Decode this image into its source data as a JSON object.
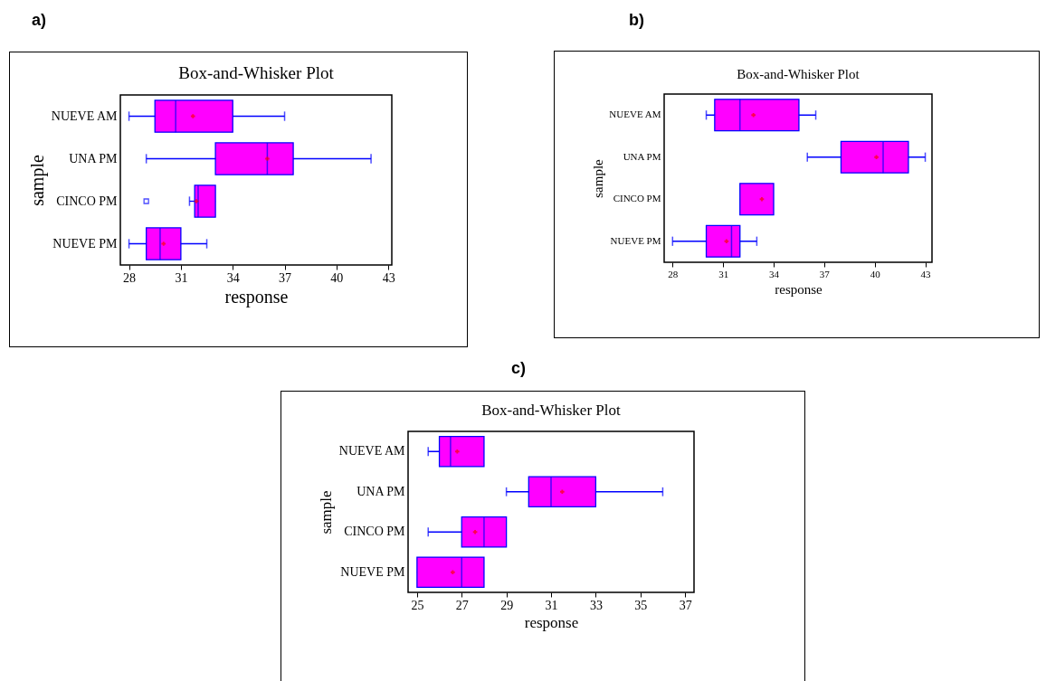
{
  "chart_data": [
    {
      "type": "box",
      "orientation": "horizontal",
      "title": "Box-and-Whisker Plot",
      "annotations": [
        "a)"
      ],
      "xlabel": "response",
      "ylabel": "sample",
      "categories": [
        "NUEVE AM",
        "UNA PM",
        "CINCO PM",
        "NUEVE PM"
      ],
      "color": "#ff00ff",
      "xlim": [
        27.5,
        43.2
      ],
      "xticks": [
        28,
        31,
        34,
        37,
        40,
        43
      ],
      "boxes": [
        {
          "low": 28,
          "q1": 29.5,
          "median": 30.7,
          "q3": 34,
          "high": 37,
          "mean": 31.7
        },
        {
          "low": 29,
          "q1": 33,
          "median": 36,
          "q3": 37.5,
          "high": 42,
          "mean": 36
        },
        {
          "low": 31.5,
          "q1": 31.8,
          "median": 32,
          "q3": 33,
          "high": 33,
          "mean": 31.9,
          "outliers": [
            29
          ]
        },
        {
          "low": 28,
          "q1": 29,
          "median": 29.8,
          "q3": 31,
          "high": 32.5,
          "mean": 30
        }
      ]
    },
    {
      "type": "box",
      "orientation": "horizontal",
      "title": "Box-and-Whisker Plot",
      "annotations": [
        "b)"
      ],
      "xlabel": "response",
      "ylabel": "sample",
      "categories": [
        "NUEVE AM",
        "UNA PM",
        "CINCO PM",
        "NUEVE PM"
      ],
      "color": "#ff00ff",
      "xlim": [
        27.5,
        43.4
      ],
      "xticks": [
        28,
        31,
        34,
        37,
        40,
        43
      ],
      "boxes": [
        {
          "low": 30,
          "q1": 30.5,
          "median": 32,
          "q3": 35.5,
          "high": 36.5,
          "mean": 32.8
        },
        {
          "low": 36,
          "q1": 38,
          "median": 40.5,
          "q3": 42,
          "high": 43,
          "mean": 40.1
        },
        {
          "low": 32,
          "q1": 32,
          "median": 32,
          "q3": 34,
          "high": 34,
          "mean": 33.3
        },
        {
          "low": 28,
          "q1": 30,
          "median": 31.5,
          "q3": 32,
          "high": 33,
          "mean": 31.2
        }
      ]
    },
    {
      "type": "box",
      "orientation": "horizontal",
      "title": "Box-and-Whisker Plot",
      "annotations": [
        "c)"
      ],
      "xlabel": "response",
      "ylabel": "sample",
      "categories": [
        "NUEVE AM",
        "UNA PM",
        "CINCO PM",
        "NUEVE PM"
      ],
      "color": "#ff00ff",
      "xlim": [
        24.6,
        37.4
      ],
      "xticks": [
        25,
        27,
        29,
        31,
        33,
        35,
        37
      ],
      "boxes": [
        {
          "low": 25.5,
          "q1": 26,
          "median": 26.5,
          "q3": 28,
          "high": 28,
          "mean": 26.8
        },
        {
          "low": 29,
          "q1": 30,
          "median": 31,
          "q3": 33,
          "high": 36,
          "mean": 31.5
        },
        {
          "low": 25.5,
          "q1": 27,
          "median": 28,
          "q3": 29,
          "high": 29,
          "mean": 27.6
        },
        {
          "low": 25,
          "q1": 25,
          "median": 27,
          "q3": 28,
          "high": 28,
          "mean": 26.6
        }
      ]
    }
  ]
}
